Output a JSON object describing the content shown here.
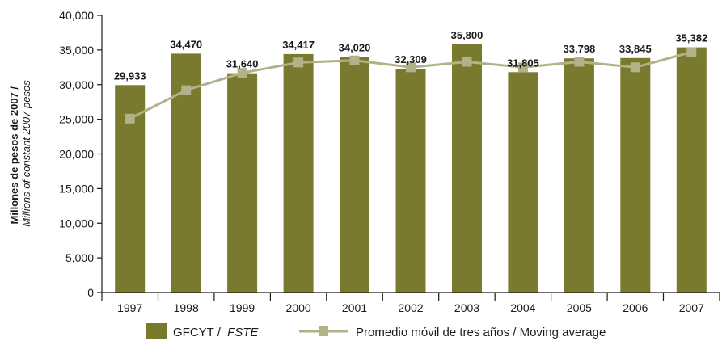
{
  "colors": {
    "bar": "#7a7a2e",
    "line": "#b2b288",
    "axis": "#1a1a1a"
  },
  "y_axis": {
    "label_main": "Millones de pesos de 2007 /",
    "label_sub": "Millions of constant 2007 pesos",
    "tick_labels": [
      "0",
      "5,000",
      "10,000",
      "15,000",
      "20,000",
      "25,000",
      "30,000",
      "35,000",
      "40,000"
    ]
  },
  "legend": {
    "bar_label": "GFCYT /",
    "bar_label_italic": "FSTE",
    "line_label": "Promedio móvil de tres años / Moving average"
  },
  "chart_data": {
    "type": "bar",
    "categories": [
      "1997",
      "1998",
      "1999",
      "2000",
      "2001",
      "2002",
      "2003",
      "2004",
      "2005",
      "2006",
      "2007"
    ],
    "series": [
      {
        "name": "GFCYT / FSTE",
        "type": "bar",
        "values": [
          29933,
          34470,
          31640,
          34417,
          34020,
          32309,
          35800,
          31805,
          33798,
          33845,
          35382
        ],
        "data_labels": [
          "29,933",
          "34,470",
          "31,640",
          "34,417",
          "34,020",
          "32,309",
          "35,800",
          "31,805",
          "33,798",
          "33,845",
          "35,382"
        ]
      },
      {
        "name": "Promedio móvil de tres años / Moving average",
        "type": "line",
        "values": [
          25100,
          29200,
          31700,
          33200,
          33500,
          32500,
          33300,
          32500,
          33300,
          32500,
          34700
        ]
      }
    ],
    "ylim": [
      0,
      40000
    ],
    "grid": false,
    "legend_position": "bottom"
  }
}
